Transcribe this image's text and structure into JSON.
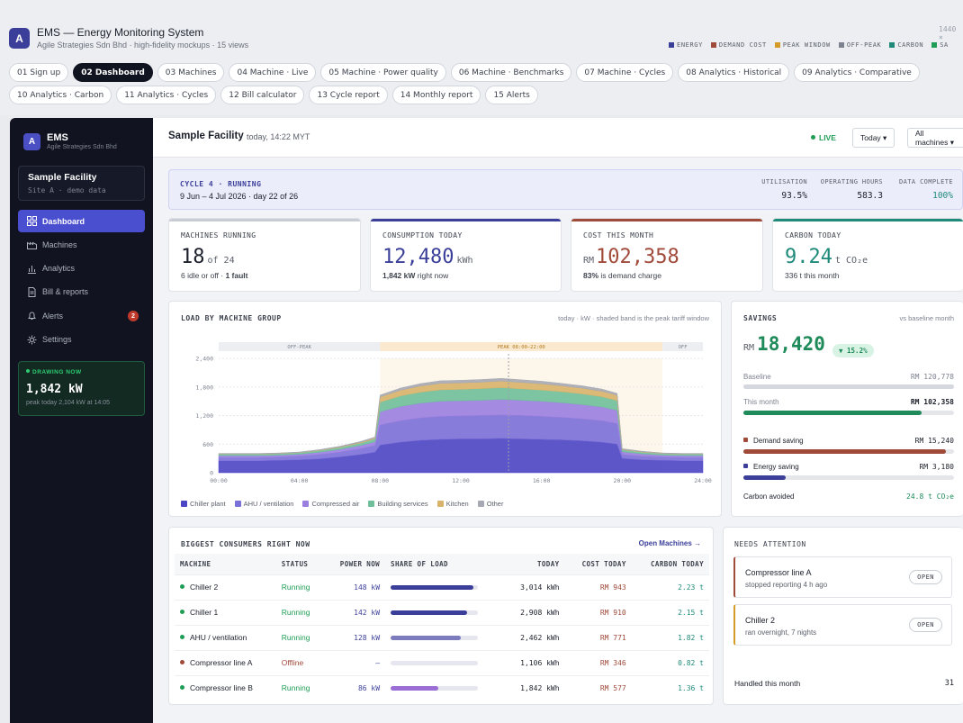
{
  "app": {
    "logo": "A",
    "title": "EMS — Energy Monitoring System",
    "subtitle": "Agile Strategies Sdn Bhd · high-fidelity mockups · 15 views",
    "size_tag": "1440 ×"
  },
  "legend_top": [
    {
      "label": "ENERGY",
      "color": "#3b3f99"
    },
    {
      "label": "DEMAND COST",
      "color": "#a04a3a"
    },
    {
      "label": "PEAK WINDOW",
      "color": "#d49a2a"
    },
    {
      "label": "OFF-PEAK",
      "color": "#7d8290"
    },
    {
      "label": "CARBON",
      "color": "#1f8a7a"
    },
    {
      "label": "SA",
      "color": "#1f9d55"
    }
  ],
  "tabs": [
    "01 Sign up",
    "02 Dashboard",
    "03 Machines",
    "04 Machine · Live",
    "05 Machine · Power quality",
    "06 Machine · Benchmarks",
    "07 Machine · Cycles",
    "08 Analytics · Historical",
    "09 Analytics · Comparative",
    "10 Analytics · Carbon",
    "11 Analytics · Cycles",
    "12 Bill calculator",
    "13 Cycle report",
    "14 Monthly report",
    "15 Alerts"
  ],
  "active_tab": 1,
  "sidebar": {
    "logo": "A",
    "brand": "EMS",
    "brand_sub": "Agile Strategies Sdn Bhd",
    "facility": "Sample Facility",
    "facility_sub": "Site A · demo data",
    "items": [
      {
        "label": "Dashboard",
        "icon": "grid-icon"
      },
      {
        "label": "Machines",
        "icon": "factory-icon"
      },
      {
        "label": "Analytics",
        "icon": "bar-chart-icon"
      },
      {
        "label": "Bill & reports",
        "icon": "document-icon"
      },
      {
        "label": "Alerts",
        "icon": "bell-icon",
        "badge": "2"
      },
      {
        "label": "Settings",
        "icon": "gear-icon"
      }
    ],
    "drawing": {
      "label": "DRAWING NOW",
      "value": "1,842 kW",
      "sub": "peak today 2,104 kW at 14:05"
    }
  },
  "header": {
    "title": "Sample Facility",
    "time": "today, 14:22 MYT",
    "live": "LIVE",
    "range": "Today ▾",
    "filter": "All machines ▾"
  },
  "cycle": {
    "label": "CYCLE 4 · RUNNING",
    "sub": "9 Jun – 4 Jul 2026 · day 22 of 26",
    "stats": [
      {
        "label": "UTILISATION",
        "value": "93.5%"
      },
      {
        "label": "OPERATING HOURS",
        "value": "583.3"
      },
      {
        "label": "DATA COMPLETE",
        "value": "100%"
      }
    ]
  },
  "kpis": [
    {
      "label": "MACHINES RUNNING",
      "value": "18",
      "unit": "of 24",
      "sub_b": "",
      "sub": "6 idle or off · ",
      "sub_b2": "1 fault",
      "color": "#c8ccd4"
    },
    {
      "label": "CONSUMPTION TODAY",
      "value": "12,480",
      "unit": "kWh",
      "sub_b": "1,842 kW",
      "sub": " right now",
      "color": "#3b3f99"
    },
    {
      "label": "COST THIS MONTH",
      "pre": "RM",
      "value": "102,358",
      "sub_b": "83%",
      "sub": " is demand charge",
      "color": "#a04a3a"
    },
    {
      "label": "CARBON TODAY",
      "value": "9.24",
      "unit": "t CO₂e",
      "sub": "336 t this month",
      "color": "#1f8a7a"
    }
  ],
  "load_card": {
    "title": "LOAD BY MACHINE GROUP",
    "note": "today · kW · shaded band is the peak tariff window",
    "band_offpeak": "OFF-PEAK",
    "band_peak": "PEAK 08:00–22:00",
    "band_off2": "OFF"
  },
  "chart_data": {
    "type": "area",
    "x": [
      "00:00",
      "01:00",
      "02:00",
      "03:00",
      "04:00",
      "05:00",
      "06:00",
      "07:00",
      "07:45",
      "08:00",
      "09:00",
      "10:00",
      "11:00",
      "12:00",
      "13:00",
      "14:00",
      "15:00",
      "16:00",
      "17:00",
      "18:00",
      "19:00",
      "19:45",
      "20:00",
      "21:00",
      "22:00",
      "23:00",
      "24:00"
    ],
    "x_ticks": [
      "00:00",
      "04:00",
      "08:00",
      "12:00",
      "16:00",
      "20:00",
      "24:00"
    ],
    "y_ticks": [
      "0",
      "600",
      "1,200",
      "1,800",
      "2,400"
    ],
    "ylim": [
      0,
      2400
    ],
    "series": [
      {
        "name": "Chiller plant",
        "color": "#4b45c4",
        "values": [
          250,
          250,
          250,
          260,
          270,
          290,
          330,
          380,
          430,
          580,
          640,
          680,
          700,
          710,
          710,
          720,
          710,
          700,
          690,
          670,
          640,
          600,
          300,
          270,
          260,
          250,
          250
        ]
      },
      {
        "name": "AHU / ventilation",
        "color": "#7b6fd8",
        "values": [
          70,
          70,
          70,
          70,
          80,
          90,
          100,
          120,
          140,
          420,
          450,
          470,
          480,
          480,
          490,
          490,
          490,
          480,
          470,
          460,
          450,
          430,
          80,
          75,
          70,
          70,
          70
        ]
      },
      {
        "name": "Compressed air",
        "color": "#9a7ee0",
        "values": [
          40,
          40,
          40,
          40,
          40,
          50,
          60,
          70,
          80,
          280,
          300,
          310,
          320,
          320,
          320,
          330,
          320,
          320,
          310,
          300,
          290,
          280,
          60,
          50,
          40,
          40,
          40
        ]
      },
      {
        "name": "Building services",
        "color": "#6fbf9a",
        "values": [
          30,
          30,
          30,
          30,
          30,
          35,
          40,
          50,
          60,
          200,
          220,
          230,
          240,
          240,
          245,
          245,
          240,
          235,
          230,
          225,
          215,
          205,
          40,
          35,
          30,
          30,
          30
        ]
      },
      {
        "name": "Kitchen",
        "color": "#d9b36a",
        "values": [
          5,
          5,
          5,
          5,
          5,
          8,
          10,
          15,
          20,
          110,
          120,
          130,
          135,
          135,
          135,
          140,
          135,
          130,
          125,
          120,
          115,
          110,
          10,
          8,
          5,
          5,
          5
        ]
      },
      {
        "name": "Other",
        "color": "#a6a9b3",
        "values": [
          10,
          10,
          10,
          10,
          10,
          12,
          15,
          18,
          20,
          40,
          45,
          50,
          55,
          55,
          55,
          55,
          55,
          55,
          50,
          50,
          45,
          40,
          15,
          12,
          10,
          10,
          10
        ]
      }
    ]
  },
  "savings": {
    "title": "SAVINGS",
    "note": "vs baseline month",
    "pre": "RM",
    "value": "18,420",
    "pill": "▼ 15.2%",
    "baseline_label": "Baseline",
    "baseline_value": "RM 120,778",
    "month_label": "This month",
    "month_value": "RM 102,358",
    "month_frac": 0.847,
    "demand_label": "Demand saving",
    "demand_value": "RM 15,240",
    "demand_frac": 0.96,
    "energy_label": "Energy saving",
    "energy_value": "RM 3,180",
    "energy_frac": 0.2,
    "carbon_label": "Carbon avoided",
    "carbon_value": "24.8 t CO₂e"
  },
  "consumers": {
    "title": "BIGGEST CONSUMERS RIGHT NOW",
    "link": "Open Machines →",
    "headers": [
      "MACHINE",
      "STATUS",
      "POWER NOW",
      "SHARE OF LOAD",
      "TODAY",
      "COST TODAY",
      "CARBON TODAY"
    ],
    "rows": [
      {
        "name": "Chiller 2",
        "status": "Running",
        "power": "148 kW",
        "share": 0.95,
        "share_color": "#3b3f99",
        "today": "3,014 kWh",
        "cost": "RM 943",
        "carbon": "2.23 t",
        "status_color": "#1f9d55"
      },
      {
        "name": "Chiller 1",
        "status": "Running",
        "power": "142 kW",
        "share": 0.88,
        "share_color": "#3b3f99",
        "today": "2,908 kWh",
        "cost": "RM 910",
        "carbon": "2.15 t",
        "status_color": "#1f9d55"
      },
      {
        "name": "AHU / ventilation",
        "status": "Running",
        "power": "128 kW",
        "share": 0.8,
        "share_color": "#7b7bbd",
        "today": "2,462 kWh",
        "cost": "RM 771",
        "carbon": "1.82 t",
        "status_color": "#1f9d55"
      },
      {
        "name": "Compressor line A",
        "status": "Offline",
        "power": "—",
        "share": 0,
        "share_color": "#c8ccd4",
        "today": "1,106 kWh",
        "cost": "RM 346",
        "carbon": "0.82 t",
        "status_color": "#a04a3a"
      },
      {
        "name": "Compressor line B",
        "status": "Running",
        "power": "86 kW",
        "share": 0.55,
        "share_color": "#9a6ed4",
        "today": "1,842 kWh",
        "cost": "RM 577",
        "carbon": "1.36 t",
        "status_color": "#1f9d55"
      }
    ]
  },
  "attention": {
    "title": "NEEDS ATTENTION",
    "items": [
      {
        "title": "Compressor line A",
        "sub": "stopped reporting 4 h ago",
        "action": "OPEN",
        "color": "#a04a3a"
      },
      {
        "title": "Chiller 2",
        "sub": "ran overnight, 7 nights",
        "action": "OPEN",
        "color": "#d49a2a"
      }
    ],
    "handled_label": "Handled this month",
    "handled_value": "31"
  }
}
